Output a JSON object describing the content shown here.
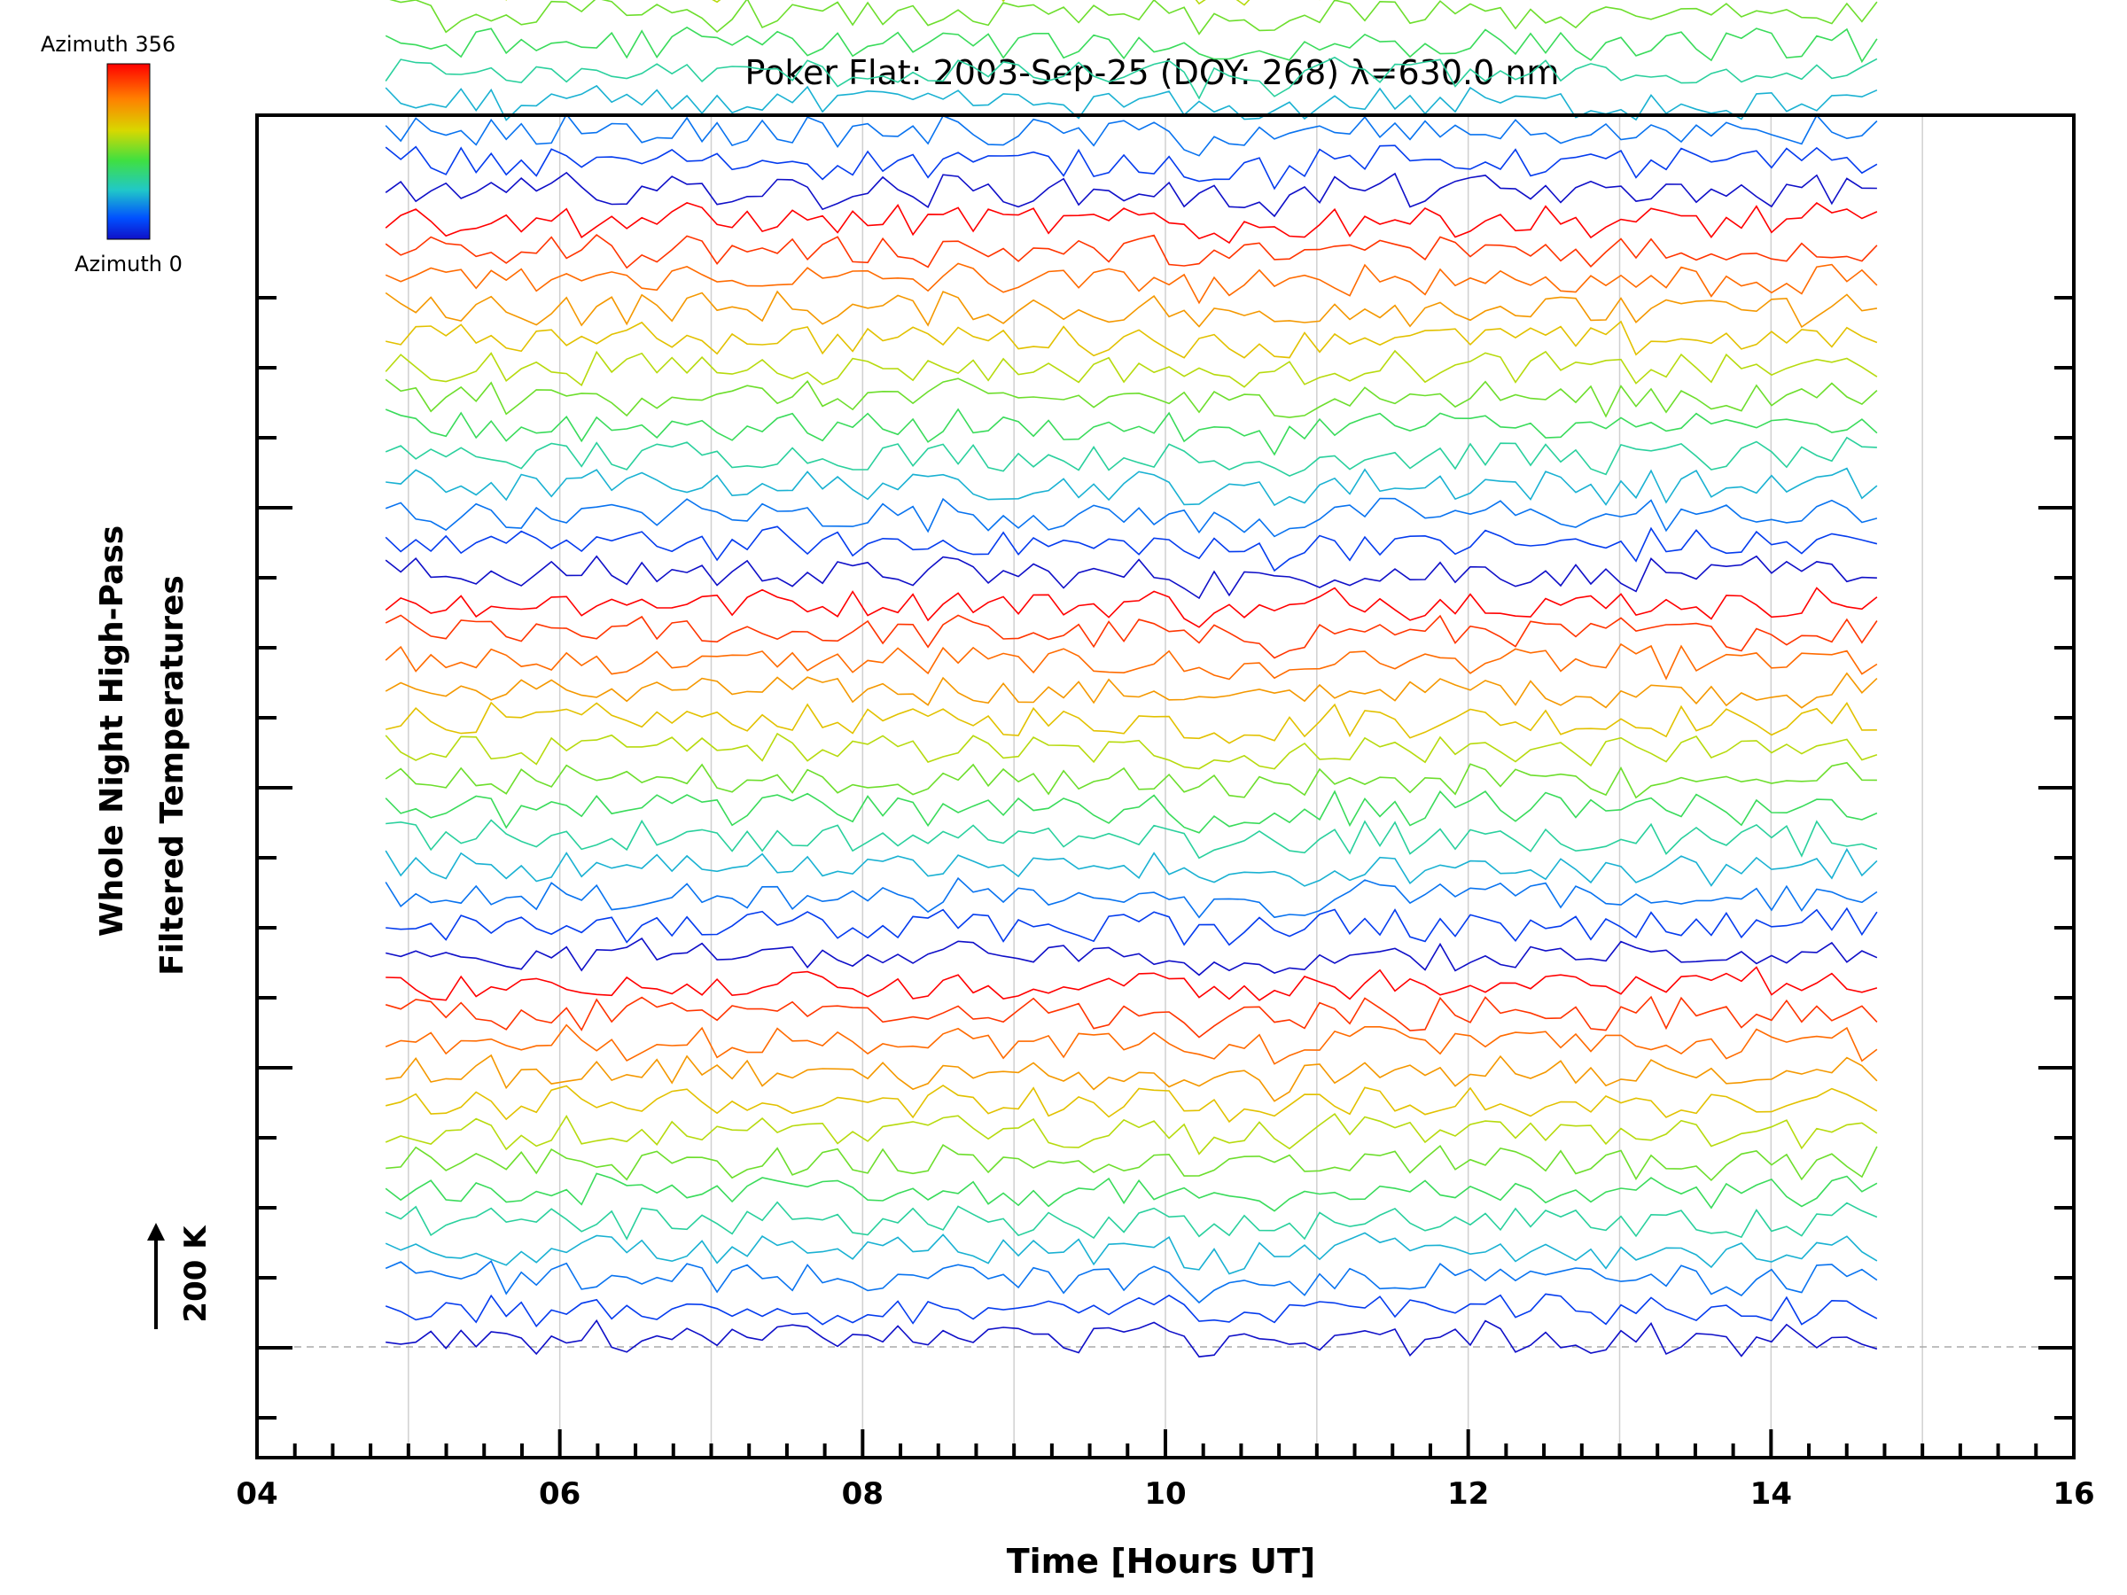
{
  "chart_data": {
    "type": "line",
    "title": "Poker Flat: 2003-Sep-25 (DOY: 268) λ=630.0 nm",
    "xlabel": "Time [Hours UT]",
    "ylabel_line1": "Whole Night High-Pass",
    "ylabel_line2": "Filtered Temperatures",
    "scale_label": "200 K",
    "xlim": [
      4,
      16
    ],
    "x_ticks": [
      "04",
      "06",
      "08",
      "10",
      "12",
      "14",
      "16"
    ],
    "x_tick_values": [
      4,
      6,
      8,
      10,
      12,
      14,
      16
    ],
    "x_minor_step": 0.25,
    "x_grid_values": [
      5,
      6,
      7,
      8,
      9,
      10,
      11,
      12,
      13,
      14,
      15
    ],
    "y_major_tick_count": 17,
    "data_range": [
      4.85,
      14.7
    ],
    "series_count": 72,
    "stack_spacing_K": 25,
    "samples_per_series": 100,
    "noise_amplitude_K": 10,
    "grid": true,
    "colorbar": {
      "top_label": "Azimuth 356",
      "bottom_label": "Azimuth 0",
      "stops": [
        "#ff0000",
        "#ff8000",
        "#d8d800",
        "#40e040",
        "#20c8c8",
        "#0050ff",
        "#1010c8"
      ]
    },
    "baseline_style": "dashed-gray"
  }
}
